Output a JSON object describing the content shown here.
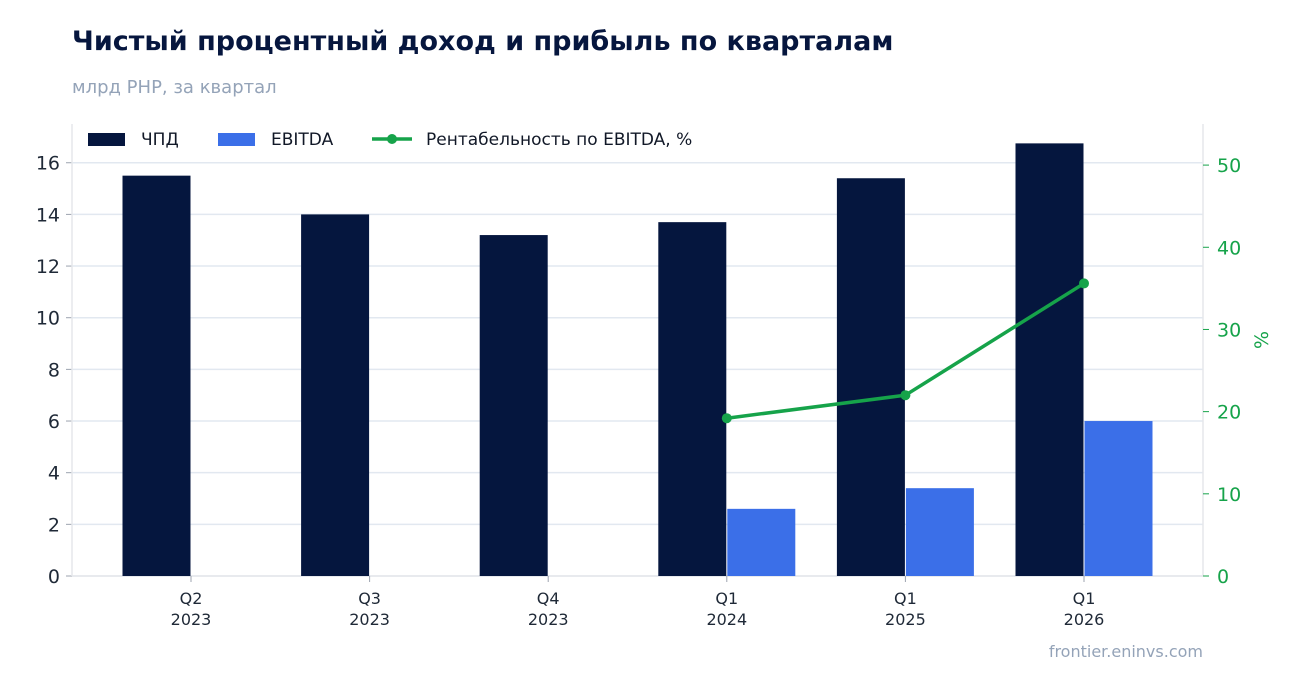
{
  "title": "Чистый процентный доход и прибыль по кварталам",
  "subtitle": "млрд РНР, за квартал",
  "source": "frontier.eninvs.com",
  "colors": {
    "npd": "#05163e",
    "ebitda": "#3b6fe8",
    "margin": "#16a34a",
    "grid": "#e2e8f0"
  },
  "chart_data": {
    "type": "bar",
    "categories": [
      "Q2 2023",
      "Q3 2023",
      "Q4 2023",
      "Q1 2024",
      "Q1 2025",
      "Q1 2026"
    ],
    "x_labels": [
      {
        "line1": "Q2",
        "line2": "2023"
      },
      {
        "line1": "Q3",
        "line2": "2023"
      },
      {
        "line1": "Q4",
        "line2": "2023"
      },
      {
        "line1": "Q1",
        "line2": "2024"
      },
      {
        "line1": "Q1",
        "line2": "2025"
      },
      {
        "line1": "Q1",
        "line2": "2026"
      }
    ],
    "series": [
      {
        "name": "ЧПД",
        "type": "bar",
        "axis": "left",
        "values": [
          15.5,
          14.0,
          13.2,
          13.7,
          15.4,
          16.75
        ]
      },
      {
        "name": "EBITDA",
        "type": "bar",
        "axis": "left",
        "values": [
          null,
          null,
          null,
          2.6,
          3.4,
          6.0
        ]
      },
      {
        "name": "Рентабельность по EBITDA, %",
        "type": "line",
        "axis": "right",
        "values": [
          null,
          null,
          null,
          19.2,
          22.0,
          35.6
        ]
      }
    ],
    "ylim": [
      0,
      17.5
    ],
    "yticks": [
      0,
      2,
      4,
      6,
      8,
      10,
      12,
      14,
      16
    ],
    "y2label": "%",
    "y2lim": [
      0,
      55
    ],
    "y2ticks": [
      0,
      10,
      20,
      30,
      40,
      50
    ],
    "grid": true,
    "legend_position": "top-left"
  }
}
